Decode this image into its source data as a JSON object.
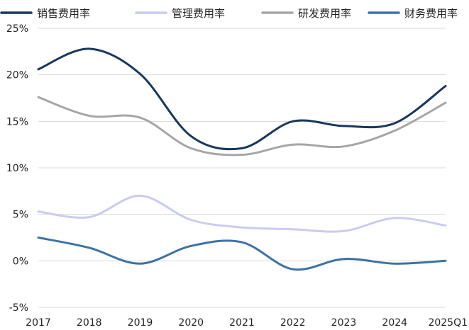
{
  "chart_data": {
    "type": "line",
    "categories": [
      "2017",
      "2018",
      "2019",
      "2020",
      "2021",
      "2022",
      "2023",
      "2024",
      "2025Q1"
    ],
    "y_ticks": [
      "25%",
      "20%",
      "15%",
      "10%",
      "5%",
      "0%",
      "-5%"
    ],
    "ylim": [
      -5,
      25
    ],
    "grid": true,
    "legend_position": "top",
    "series": [
      {
        "name": "销售费用率",
        "color": "#17375e",
        "values": [
          20.6,
          22.8,
          20.1,
          13.4,
          12.1,
          15.0,
          14.5,
          14.8,
          18.8
        ]
      },
      {
        "name": "管理费用率",
        "color": "#c9ccf2",
        "values": [
          5.3,
          4.7,
          7.0,
          4.4,
          3.6,
          3.4,
          3.2,
          4.6,
          3.8
        ]
      },
      {
        "name": "研发费用率",
        "color": "#a6a6a6",
        "values": [
          17.6,
          15.6,
          15.4,
          12.1,
          11.4,
          12.5,
          12.3,
          14.0,
          17.0
        ]
      },
      {
        "name": "财务费用率",
        "color": "#3d72a6",
        "values": [
          2.5,
          1.4,
          -0.3,
          1.6,
          2.0,
          -0.9,
          0.2,
          -0.3,
          0.0
        ]
      }
    ]
  }
}
